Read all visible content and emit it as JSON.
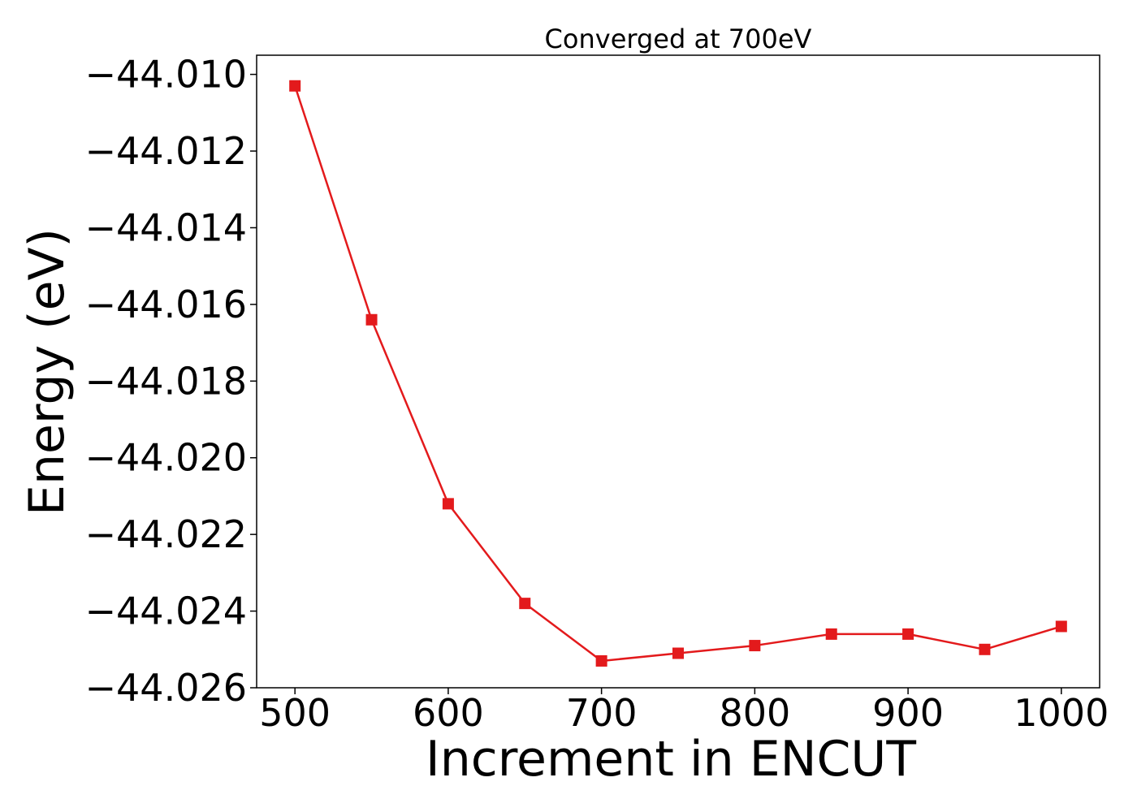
{
  "chart_data": {
    "type": "line",
    "title": "Converged at 700eV",
    "xlabel": "Increment in ENCUT",
    "ylabel": "Energy (eV)",
    "x": [
      500,
      550,
      600,
      650,
      700,
      750,
      800,
      850,
      900,
      950,
      1000
    ],
    "series": [
      {
        "values": [
          -44.0103,
          -44.0164,
          -44.0212,
          -44.0238,
          -44.0253,
          -44.0251,
          -44.0249,
          -44.0246,
          -44.0246,
          -44.025,
          -44.0244
        ],
        "color": "#e31a1c",
        "marker": "square"
      }
    ],
    "xlim": [
      475,
      1025
    ],
    "ylim": [
      -44.026,
      -44.0095
    ],
    "xticks": [
      500,
      600,
      700,
      800,
      900,
      1000
    ],
    "xtick_labels": [
      "500",
      "600",
      "700",
      "800",
      "900",
      "1000"
    ],
    "yticks": [
      -44.01,
      -44.012,
      -44.014,
      -44.016,
      -44.018,
      -44.02,
      -44.022,
      -44.024,
      -44.026
    ],
    "ytick_labels": [
      "−44.010",
      "−44.012",
      "−44.014",
      "−44.016",
      "−44.018",
      "−44.020",
      "−44.022",
      "−44.024",
      "−44.026"
    ],
    "grid": false,
    "legend": "none"
  }
}
